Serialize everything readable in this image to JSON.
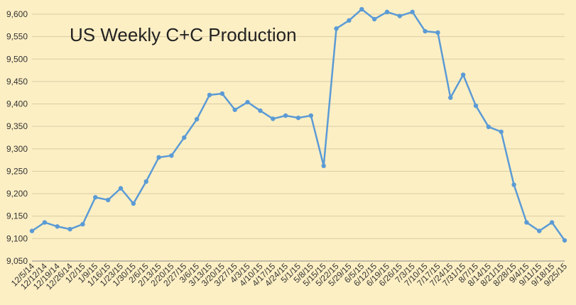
{
  "chart_data": {
    "type": "line",
    "title": "US Weekly C+C Production",
    "xlabel": "",
    "ylabel": "",
    "ylim": [
      9050,
      9600
    ],
    "yticks": [
      9050,
      9100,
      9150,
      9200,
      9250,
      9300,
      9350,
      9400,
      9450,
      9500,
      9550,
      9600
    ],
    "ytick_labels": [
      "9,050",
      "9,100",
      "9,150",
      "9,200",
      "9,250",
      "9,300",
      "9,350",
      "9,400",
      "9,450",
      "9,500",
      "9,550",
      "9,600"
    ],
    "grid": true,
    "legend": "none",
    "line_color": "#5b9bd5",
    "categories": [
      "12/5/14",
      "12/12/14",
      "12/19/14",
      "12/26/14",
      "1/2/15",
      "1/9/15",
      "1/16/15",
      "1/23/15",
      "1/30/15",
      "2/6/15",
      "2/13/15",
      "2/20/15",
      "2/27/15",
      "3/6/15",
      "3/13/15",
      "3/20/15",
      "3/27/15",
      "4/3/15",
      "4/10/15",
      "4/17/15",
      "4/24/15",
      "5/1/15",
      "5/8/15",
      "5/15/15",
      "5/22/15",
      "5/29/15",
      "6/5/15",
      "6/12/15",
      "6/19/15",
      "6/26/15",
      "7/3/15",
      "7/10/15",
      "7/17/15",
      "7/24/15",
      "7/31/15",
      "8/7/15",
      "8/14/15",
      "8/21/15",
      "8/28/15",
      "9/4/15",
      "9/11/15",
      "9/18/15",
      "9/25/15"
    ],
    "values": [
      9117,
      9136,
      9127,
      9121,
      9132,
      9192,
      9186,
      9212,
      9178,
      9227,
      9281,
      9285,
      9325,
      9366,
      9420,
      9423,
      9387,
      9404,
      9385,
      9367,
      9374,
      9369,
      9374,
      9262,
      9568,
      9586,
      9611,
      9589,
      9605,
      9596,
      9605,
      9562,
      9559,
      9414,
      9465,
      9396,
      9349,
      9338,
      9220,
      9136,
      9117,
      9136,
      9096
    ]
  }
}
